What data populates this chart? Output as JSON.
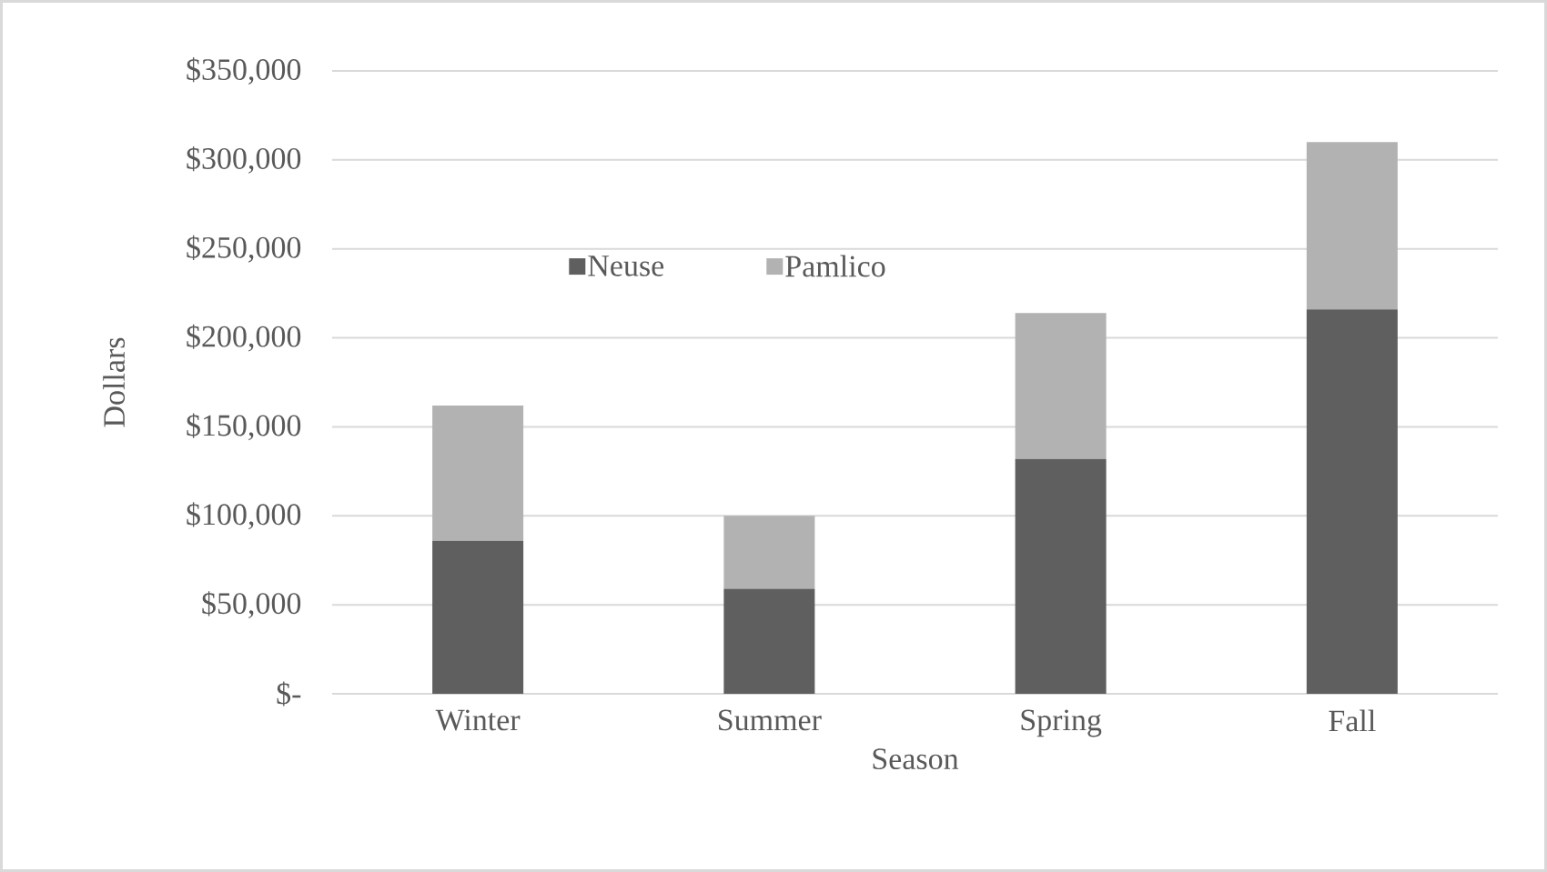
{
  "chart_data": {
    "type": "bar",
    "stacked": true,
    "xlabel": "Season",
    "ylabel": "Dollars",
    "categories": [
      "Winter",
      "Summer",
      "Spring",
      "Fall"
    ],
    "series": [
      {
        "name": "Neuse",
        "color": "#5f5f5f",
        "values": [
          86000,
          59000,
          132000,
          216000
        ]
      },
      {
        "name": "Pamlico",
        "color": "#b2b2b2",
        "values": [
          76000,
          41000,
          82000,
          94000
        ]
      }
    ],
    "ylim": [
      0,
      350000
    ],
    "yticks": [
      {
        "value": 0,
        "label": "$-"
      },
      {
        "value": 50000,
        "label": "$50,000"
      },
      {
        "value": 100000,
        "label": "$100,000"
      },
      {
        "value": 150000,
        "label": "$150,000"
      },
      {
        "value": 200000,
        "label": "$200,000"
      },
      {
        "value": 250000,
        "label": "$250,000"
      },
      {
        "value": 300000,
        "label": "$300,000"
      },
      {
        "value": 350000,
        "label": "$350,000"
      }
    ],
    "grid": "y",
    "legend": "top left"
  }
}
